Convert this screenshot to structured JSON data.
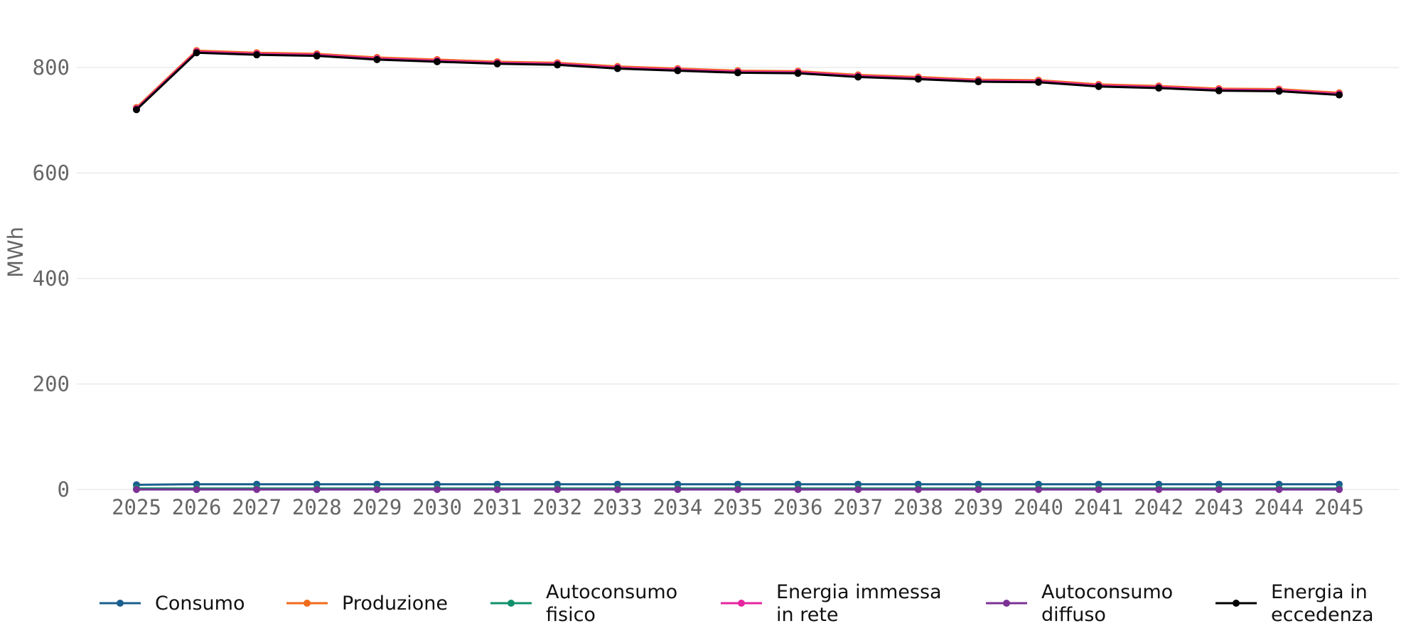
{
  "chart_data": {
    "type": "line",
    "title": "",
    "xlabel": "",
    "ylabel": "MWh",
    "x": [
      "2025",
      "2026",
      "2027",
      "2028",
      "2029",
      "2030",
      "2031",
      "2032",
      "2033",
      "2034",
      "2035",
      "2036",
      "2037",
      "2038",
      "2039",
      "2040",
      "2041",
      "2042",
      "2043",
      "2044",
      "2045"
    ],
    "ylim": [
      0,
      900
    ],
    "yticks": [
      "0",
      "200",
      "400",
      "600",
      "800"
    ],
    "grid": "horizontal",
    "legend_position": "bottom",
    "series": [
      {
        "name": "Consumo",
        "color": "#1a5f8e",
        "values": [
          9,
          10,
          10,
          10,
          10,
          10,
          10,
          10,
          10,
          10,
          10,
          10,
          10,
          10,
          10,
          10,
          10,
          10,
          10,
          10,
          10
        ]
      },
      {
        "name": "Produzione",
        "color": "#f26a1b",
        "values": [
          724,
          832,
          828,
          826,
          819,
          815,
          811,
          809,
          802,
          798,
          794,
          793,
          786,
          782,
          777,
          776,
          768,
          765,
          760,
          759,
          752
        ]
      },
      {
        "name": "Autoconsumo fisico",
        "color": "#10916b",
        "values": [
          2,
          2,
          2,
          2,
          2,
          2,
          2,
          2,
          2,
          2,
          2,
          2,
          2,
          2,
          2,
          2,
          2,
          2,
          2,
          2,
          2
        ]
      },
      {
        "name": "Energia immessa in rete",
        "color": "#e6259f",
        "values": [
          722,
          830,
          826,
          824,
          817,
          813,
          809,
          807,
          800,
          796,
          792,
          791,
          784,
          780,
          775,
          774,
          766,
          763,
          758,
          757,
          750
        ]
      },
      {
        "name": "Autoconsumo diffuso",
        "color": "#7b3294",
        "values": [
          0,
          0,
          0,
          0,
          0,
          0,
          0,
          0,
          0,
          0,
          0,
          0,
          0,
          0,
          0,
          0,
          0,
          0,
          0,
          0,
          0
        ]
      },
      {
        "name": "Energia in eccedenza",
        "color": "#000000",
        "values": [
          720,
          828,
          824,
          822,
          815,
          811,
          807,
          805,
          798,
          794,
          790,
          789,
          782,
          778,
          773,
          772,
          764,
          761,
          756,
          755,
          748
        ]
      }
    ],
    "legend_labels": [
      [
        "Consumo"
      ],
      [
        "Produzione"
      ],
      [
        "Autoconsumo",
        "fisico"
      ],
      [
        "Energia immessa",
        "in rete"
      ],
      [
        "Autoconsumo",
        "diffuso"
      ],
      [
        "Energia in",
        "eccedenza"
      ]
    ]
  }
}
